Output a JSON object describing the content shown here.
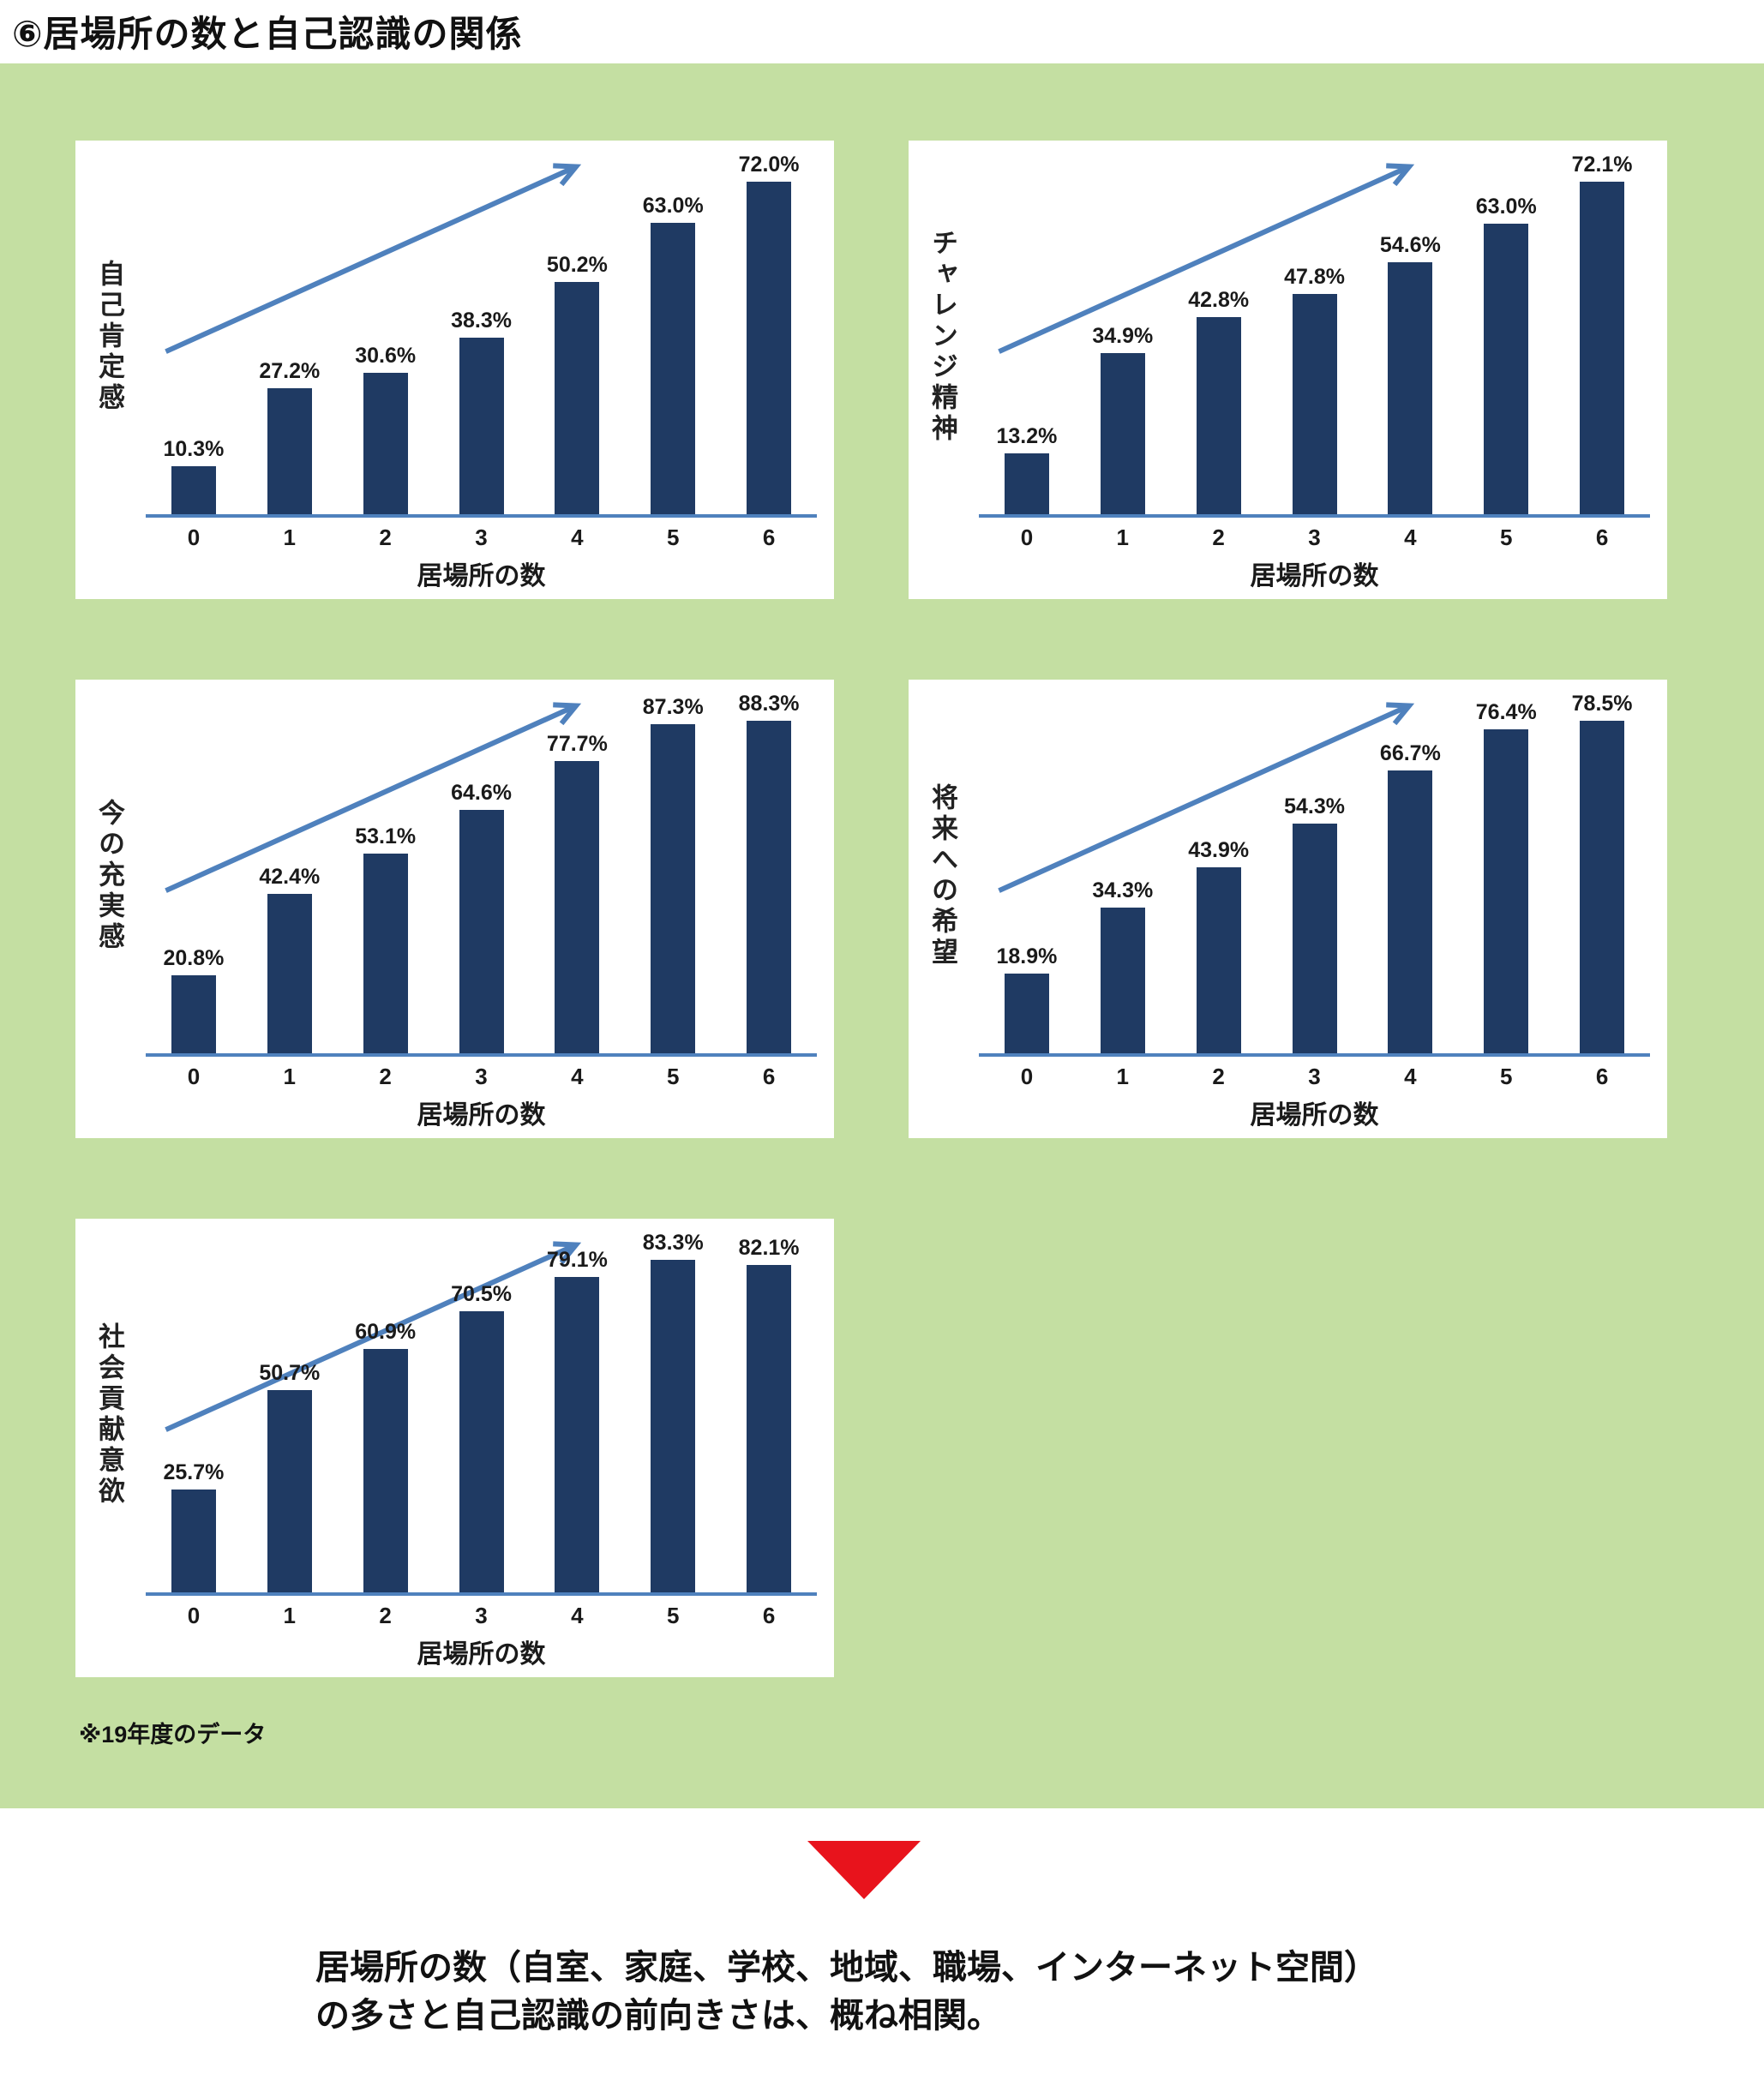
{
  "page": {
    "title": "⑥居場所の数と自己認識の関係",
    "note": "※19年度のデータ",
    "conclusion_line1": "居場所の数（自室、家庭、学校、地域、職場、インターネット空間）",
    "conclusion_line2": "の多さと自己認識の前向きさは、概ね相関。",
    "colors": {
      "background_green": "#c4dfa2",
      "bar_navy": "#1f3a63",
      "arrow_blue": "#4f81bd",
      "axis_blue": "#4f81bd",
      "triangle_red": "#e8131c",
      "panel_white": "#ffffff"
    }
  },
  "chart_data": [
    {
      "type": "bar",
      "title": "自己肯定感",
      "ylabel": "自己肯定感",
      "xlabel": "居場所の数",
      "categories": [
        "0",
        "1",
        "2",
        "3",
        "4",
        "5",
        "6"
      ],
      "values": [
        10.3,
        27.2,
        30.6,
        38.3,
        50.2,
        63.0,
        72.0
      ],
      "labels": [
        "10.3%",
        "27.2%",
        "30.6%",
        "38.3%",
        "50.2%",
        "63.0%",
        "72.0%"
      ],
      "ylim": [
        0,
        100
      ],
      "annotations": [
        "upward trend arrow"
      ],
      "legend": "none",
      "grid": "off"
    },
    {
      "type": "bar",
      "title": "チャレンジ精神",
      "ylabel": "チャレンジ精神",
      "xlabel": "居場所の数",
      "categories": [
        "0",
        "1",
        "2",
        "3",
        "4",
        "5",
        "6"
      ],
      "values": [
        13.2,
        34.9,
        42.8,
        47.8,
        54.6,
        63.0,
        72.1
      ],
      "labels": [
        "13.2%",
        "34.9%",
        "42.8%",
        "47.8%",
        "54.6%",
        "63.0%",
        "72.1%"
      ],
      "ylim": [
        0,
        100
      ],
      "annotations": [
        "upward trend arrow"
      ],
      "legend": "none",
      "grid": "off"
    },
    {
      "type": "bar",
      "title": "今の充実感",
      "ylabel": "今の充実感",
      "xlabel": "居場所の数",
      "categories": [
        "0",
        "1",
        "2",
        "3",
        "4",
        "5",
        "6"
      ],
      "values": [
        20.8,
        42.4,
        53.1,
        64.6,
        77.7,
        87.3,
        88.3
      ],
      "labels": [
        "20.8%",
        "42.4%",
        "53.1%",
        "64.6%",
        "77.7%",
        "87.3%",
        "88.3%"
      ],
      "ylim": [
        0,
        100
      ],
      "annotations": [
        "upward trend arrow"
      ],
      "legend": "none",
      "grid": "off"
    },
    {
      "type": "bar",
      "title": "将来への希望",
      "ylabel": "将来への希望",
      "xlabel": "居場所の数",
      "categories": [
        "0",
        "1",
        "2",
        "3",
        "4",
        "5",
        "6"
      ],
      "values": [
        18.9,
        34.3,
        43.9,
        54.3,
        66.7,
        76.4,
        78.5
      ],
      "labels": [
        "18.9%",
        "34.3%",
        "43.9%",
        "54.3%",
        "66.7%",
        "76.4%",
        "78.5%"
      ],
      "ylim": [
        0,
        100
      ],
      "annotations": [
        "upward trend arrow"
      ],
      "legend": "none",
      "grid": "off"
    },
    {
      "type": "bar",
      "title": "社会貢献意欲",
      "ylabel": "社会貢献意欲",
      "xlabel": "居場所の数",
      "categories": [
        "0",
        "1",
        "2",
        "3",
        "4",
        "5",
        "6"
      ],
      "values": [
        25.7,
        50.7,
        60.9,
        70.5,
        79.1,
        83.3,
        82.1
      ],
      "labels": [
        "25.7%",
        "50.7%",
        "60.9%",
        "70.5%",
        "79.1%",
        "83.3%",
        "82.1%"
      ],
      "ylim": [
        0,
        100
      ],
      "annotations": [
        "upward trend arrow"
      ],
      "legend": "none",
      "grid": "off"
    }
  ]
}
